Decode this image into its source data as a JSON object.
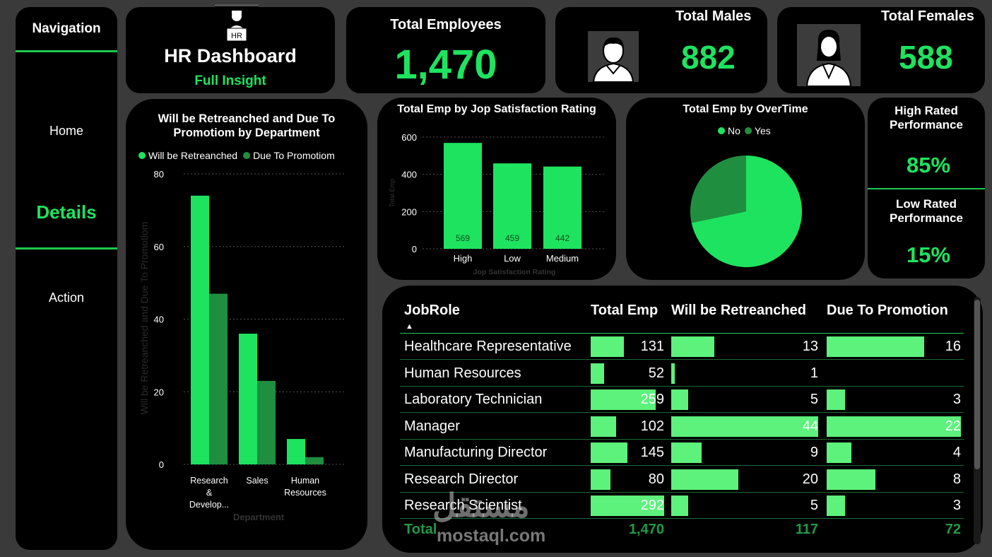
{
  "nav": {
    "title": "Navigation",
    "items": [
      {
        "label": "Home",
        "active": false
      },
      {
        "label": "Details",
        "active": true
      },
      {
        "label": "Action",
        "active": false
      }
    ]
  },
  "header": {
    "icon_label": "HR",
    "title": "HR Dashboard",
    "subtitle": "Full Insight"
  },
  "kpis": {
    "total_employees": {
      "label": "Total Employees",
      "value": "1,470"
    },
    "total_males": {
      "label": "Total Males",
      "value": "882",
      "icon": "male-user-icon"
    },
    "total_females": {
      "label": "Total Females",
      "value": "588",
      "icon": "female-user-icon"
    },
    "high_rated": {
      "label_line1": "High Rated",
      "label_line2": "Performance",
      "value": "85%"
    },
    "low_rated": {
      "label_line1": "Low Rated",
      "label_line2": "Performance",
      "value": "15%"
    }
  },
  "colors": {
    "accent": "#1ee35f",
    "dark_green": "#1f8f3f",
    "table_bar": "#5cf27c",
    "panel": "#000000",
    "background": "#3a3a3a"
  },
  "chart_data": [
    {
      "type": "bar",
      "title_line1": "Will be Retreanched and Due To",
      "title_line2": "Promotiom by Department",
      "categories": [
        "Research & Develop...",
        "Sales",
        "Human Resources"
      ],
      "category_lines": [
        [
          "Research",
          "&",
          "Develop..."
        ],
        [
          "Sales"
        ],
        [
          "Human",
          "Resources"
        ]
      ],
      "series": [
        {
          "name": "Will be Retreanched",
          "values": [
            74,
            36,
            7
          ],
          "color": "#1ee35f"
        },
        {
          "name": "Due To Promotiom",
          "values": [
            47,
            23,
            2
          ],
          "color": "#1f8f3f"
        }
      ],
      "xlabel": "Department",
      "ylabel": "Will be Retreanched and Due To Promotiom",
      "ylim": [
        0,
        80
      ],
      "yticks": [
        0,
        20,
        40,
        60,
        80
      ],
      "grid": true,
      "legend": "top"
    },
    {
      "type": "bar",
      "title": "Total Emp by Jop Satisfaction Rating",
      "categories": [
        "High",
        "Low",
        "Medium"
      ],
      "values": [
        569,
        459,
        442
      ],
      "xlabel": "Jop Satisfaction Rating",
      "ylabel": "Total Emp",
      "ylim": [
        0,
        600
      ],
      "yticks": [
        0,
        200,
        400,
        600
      ],
      "grid": true,
      "color": "#1ee35f"
    },
    {
      "type": "pie",
      "title": "Total Emp by OverTime",
      "slices": [
        {
          "name": "No",
          "value": 1054,
          "color": "#1ee35f"
        },
        {
          "name": "Yes",
          "value": 416,
          "color": "#1f8f3f"
        }
      ],
      "legend": "top"
    },
    {
      "type": "table",
      "columns": [
        "JobRole",
        "Total Emp",
        "Will be Retreanched",
        "Due To Promotion"
      ],
      "rows": [
        {
          "role": "Healthcare Representative",
          "total": "131",
          "retrench": "13",
          "promotion": "16"
        },
        {
          "role": "Human Resources",
          "total": "52",
          "retrench": "1",
          "promotion": ""
        },
        {
          "role": "Laboratory Technician",
          "total": "259",
          "retrench": "5",
          "promotion": "3"
        },
        {
          "role": "Manager",
          "total": "102",
          "retrench": "44",
          "promotion": "22"
        },
        {
          "role": "Manufacturing Director",
          "total": "145",
          "retrench": "9",
          "promotion": "4"
        },
        {
          "role": "Research Director",
          "total": "80",
          "retrench": "20",
          "promotion": "8"
        },
        {
          "role": "Research Scientist",
          "total": "292",
          "retrench": "5",
          "promotion": "3"
        }
      ],
      "total": {
        "label": "Total",
        "total": "1,470",
        "retrench": "117",
        "promotion": "72"
      }
    }
  ],
  "watermark": {
    "arabic": "مستقل",
    "latin": "mostaql.com"
  }
}
